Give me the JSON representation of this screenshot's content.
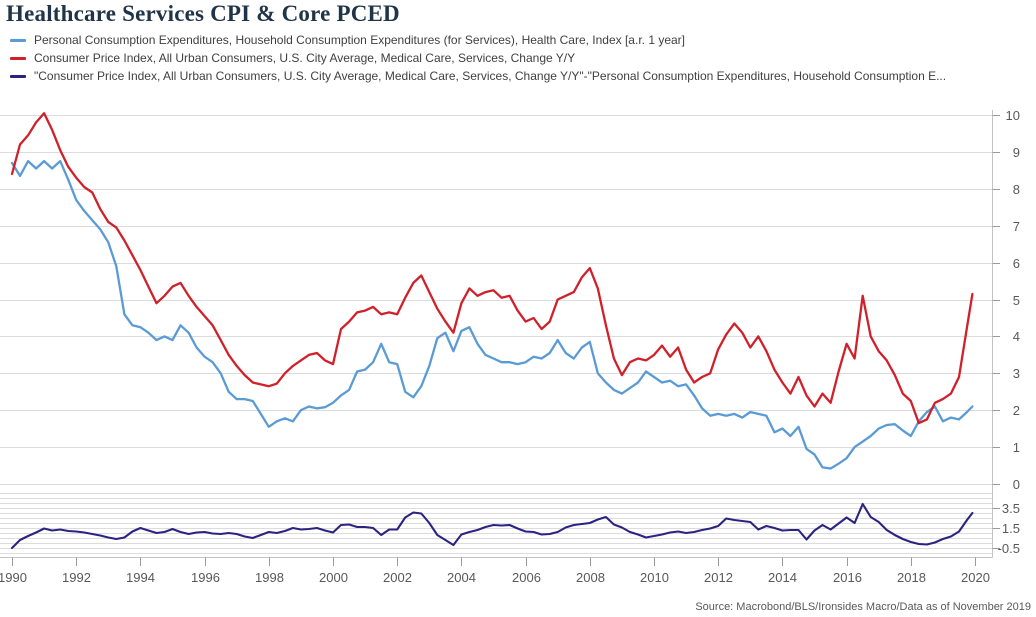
{
  "title": "Healthcare Services CPI & Core PCED",
  "source": "Source: Macrobond/BLS/Ironsides Macro/Data as of November 2019",
  "legend": [
    {
      "name": "pce-healthcare-index",
      "color": "#5b9bd5",
      "label": "Personal Consumption Expenditures, Household Consumption Expenditures (for Services), Health Care, Index [a.r. 1 year]"
    },
    {
      "name": "cpi-medical-services",
      "color": "#d0212a",
      "label": "Consumer Price Index, All Urban Consumers, U.S. City Average, Medical Care, Services, Change Y/Y"
    },
    {
      "name": "cpi-minus-pce-spread",
      "color": "#2a2382",
      "label": "\"Consumer Price Index, All Urban Consumers, U.S. City Average, Medical Care, Services, Change Y/Y\"-\"Personal Consumption Expenditures, Household Consumption E..."
    }
  ],
  "chart_data": {
    "type": "line",
    "title": "Healthcare Services CPI & Core PCED",
    "xlabel": "",
    "ylabel": "",
    "grid": true,
    "legend_position": "top-left",
    "x": {
      "start": 1990,
      "step": 0.25,
      "count": 121,
      "last_point": 2019.92
    },
    "x_axis": {
      "tick_years": [
        1990,
        1992,
        1994,
        1996,
        1998,
        2000,
        2002,
        2004,
        2006,
        2008,
        2010,
        2012,
        2014,
        2016,
        2018,
        2020
      ]
    },
    "panels": [
      {
        "name": "main",
        "ylim": [
          0,
          10
        ],
        "yticks": [
          0,
          1,
          2,
          3,
          4,
          5,
          6,
          7,
          8,
          9,
          10
        ],
        "grid_step": 1,
        "axis_side": "right"
      },
      {
        "name": "spread",
        "ylim": [
          -1,
          5
        ],
        "ytick_labels": [
          3.5,
          1.5,
          -0.5
        ],
        "grid_step": 0.5,
        "axis_side": "right"
      }
    ],
    "series": [
      {
        "name": "Personal Consumption Expenditures, Household Consumption Expenditures (for Services), Health Care, Index [a.r. 1 year]",
        "short_name": "pce-healthcare-index",
        "panel": "main",
        "color": "#5b9bd5",
        "width": 2.3,
        "values": [
          8.7,
          8.35,
          8.75,
          8.55,
          8.75,
          8.55,
          8.75,
          8.25,
          7.7,
          7.4,
          7.15,
          6.9,
          6.55,
          5.9,
          4.6,
          4.3,
          4.25,
          4.1,
          3.9,
          4.0,
          3.9,
          4.3,
          4.1,
          3.7,
          3.45,
          3.3,
          3.0,
          2.5,
          2.3,
          2.3,
          2.25,
          1.9,
          1.55,
          1.7,
          1.78,
          1.7,
          2.0,
          2.1,
          2.05,
          2.08,
          2.2,
          2.4,
          2.55,
          3.05,
          3.1,
          3.3,
          3.8,
          3.3,
          3.25,
          2.5,
          2.35,
          2.65,
          3.2,
          3.95,
          4.1,
          3.6,
          4.15,
          4.25,
          3.8,
          3.5,
          3.4,
          3.3,
          3.3,
          3.25,
          3.3,
          3.45,
          3.4,
          3.55,
          3.9,
          3.55,
          3.4,
          3.7,
          3.85,
          3.0,
          2.75,
          2.55,
          2.45,
          2.6,
          2.75,
          3.05,
          2.9,
          2.75,
          2.8,
          2.65,
          2.7,
          2.4,
          2.05,
          1.85,
          1.9,
          1.85,
          1.9,
          1.8,
          1.95,
          1.9,
          1.85,
          1.4,
          1.5,
          1.3,
          1.55,
          0.95,
          0.8,
          0.45,
          0.42,
          0.55,
          0.7,
          1.0,
          1.15,
          1.3,
          1.5,
          1.6,
          1.62,
          1.45,
          1.3,
          1.7,
          1.95,
          2.1,
          1.7,
          1.8,
          1.75,
          1.95,
          2.1
        ]
      },
      {
        "name": "Consumer Price Index, All Urban Consumers, U.S. City Average, Medical Care, Services, Change Y/Y",
        "short_name": "cpi-medical-services",
        "panel": "main",
        "color": "#d0212a",
        "width": 2.3,
        "values": [
          8.4,
          9.2,
          9.45,
          9.8,
          10.05,
          9.6,
          9.05,
          8.6,
          8.3,
          8.05,
          7.9,
          7.45,
          7.1,
          6.95,
          6.6,
          6.2,
          5.8,
          5.35,
          4.9,
          5.1,
          5.35,
          5.45,
          5.1,
          4.8,
          4.55,
          4.3,
          3.9,
          3.5,
          3.2,
          2.95,
          2.75,
          2.7,
          2.65,
          2.72,
          3.0,
          3.2,
          3.35,
          3.5,
          3.55,
          3.35,
          3.25,
          4.2,
          4.4,
          4.65,
          4.7,
          4.8,
          4.6,
          4.65,
          4.6,
          5.05,
          5.45,
          5.65,
          5.2,
          4.75,
          4.4,
          4.1,
          4.9,
          5.3,
          5.1,
          5.2,
          5.25,
          5.05,
          5.1,
          4.7,
          4.4,
          4.5,
          4.2,
          4.4,
          5.0,
          5.1,
          5.2,
          5.6,
          5.85,
          5.3,
          4.3,
          3.4,
          2.95,
          3.3,
          3.4,
          3.35,
          3.5,
          3.75,
          3.45,
          3.7,
          3.1,
          2.75,
          2.9,
          3.0,
          3.65,
          4.05,
          4.35,
          4.1,
          3.7,
          4.0,
          3.6,
          3.1,
          2.75,
          2.45,
          2.9,
          2.4,
          2.1,
          2.45,
          2.2,
          3.05,
          3.8,
          3.4,
          5.1,
          4.0,
          3.6,
          3.35,
          2.95,
          2.45,
          2.25,
          1.65,
          1.75,
          2.2,
          2.3,
          2.45,
          2.9,
          4.25,
          5.15
        ]
      },
      {
        "name": "\"Consumer Price Index, All Urban Consumers, U.S. City Average, Medical Care, Services, Change Y/Y\"-\"Personal Consumption Expenditures, Household Consumption Expenditures\"",
        "short_name": "cpi-minus-pce-spread",
        "panel": "spread",
        "color": "#2a2382",
        "width": 2.1,
        "values": [
          -0.5,
          0.3,
          0.7,
          1.05,
          1.45,
          1.25,
          1.35,
          1.2,
          1.15,
          1.05,
          0.9,
          0.75,
          0.55,
          0.4,
          0.55,
          1.15,
          1.5,
          1.25,
          1.0,
          1.1,
          1.4,
          1.1,
          0.9,
          1.05,
          1.1,
          0.95,
          0.9,
          1.0,
          0.9,
          0.65,
          0.5,
          0.8,
          1.1,
          1.0,
          1.2,
          1.5,
          1.35,
          1.4,
          1.5,
          1.25,
          1.05,
          1.8,
          1.85,
          1.6,
          1.6,
          1.5,
          0.8,
          1.35,
          1.35,
          2.55,
          3.05,
          2.95,
          2.0,
          0.8,
          0.3,
          -0.2,
          0.85,
          1.1,
          1.3,
          1.6,
          1.8,
          1.75,
          1.8,
          1.45,
          1.15,
          1.1,
          0.85,
          0.9,
          1.1,
          1.55,
          1.8,
          1.9,
          2.0,
          2.35,
          2.6,
          1.85,
          1.55,
          1.1,
          0.85,
          0.55,
          0.7,
          0.85,
          1.05,
          1.15,
          1.0,
          1.1,
          1.3,
          1.45,
          1.7,
          2.45,
          2.3,
          2.2,
          2.1,
          1.35,
          1.7,
          1.5,
          1.25,
          1.3,
          1.3,
          0.35,
          1.25,
          1.8,
          1.35,
          1.95,
          2.55,
          2.0,
          3.9,
          2.6,
          2.1,
          1.3,
          0.8,
          0.4,
          0.1,
          -0.1,
          -0.15,
          0.05,
          0.4,
          0.65,
          1.15,
          2.3,
          3.0
        ]
      }
    ]
  }
}
